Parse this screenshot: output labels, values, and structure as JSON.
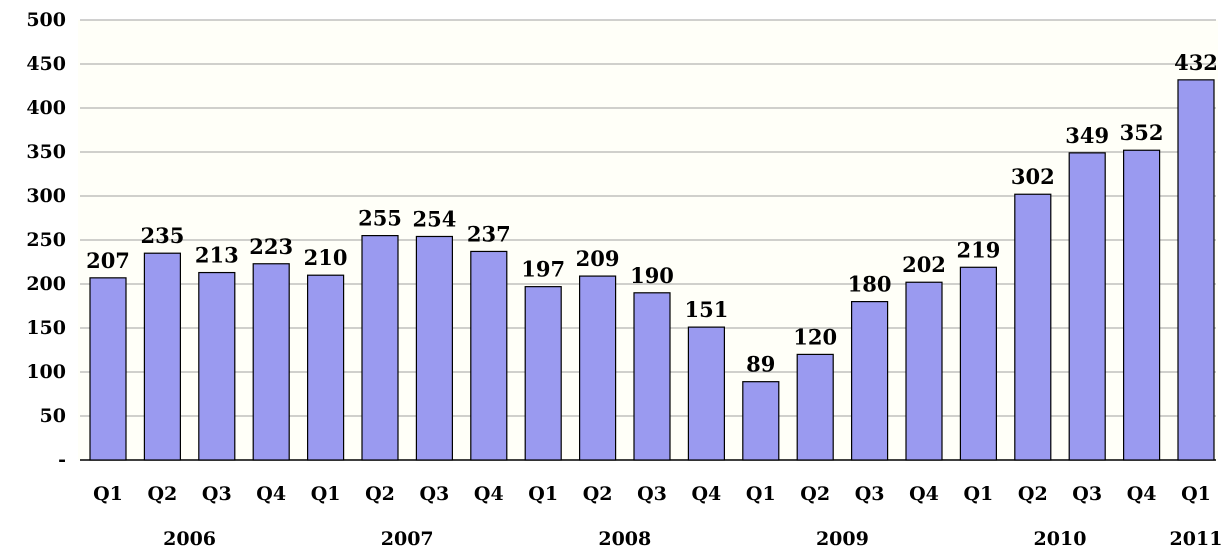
{
  "chart_data": {
    "type": "bar",
    "categories": [
      "Q1",
      "Q2",
      "Q3",
      "Q4",
      "Q1",
      "Q2",
      "Q3",
      "Q4",
      "Q1",
      "Q2",
      "Q3",
      "Q4",
      "Q1",
      "Q2",
      "Q3",
      "Q4",
      "Q1",
      "Q2",
      "Q3",
      "Q4",
      "Q1"
    ],
    "years": [
      {
        "label": "2006",
        "quarters": 4
      },
      {
        "label": "2007",
        "quarters": 4
      },
      {
        "label": "2008",
        "quarters": 4
      },
      {
        "label": "2009",
        "quarters": 4
      },
      {
        "label": "2010",
        "quarters": 4
      },
      {
        "label": "2011",
        "quarters": 1
      }
    ],
    "values": [
      207,
      235,
      213,
      223,
      210,
      255,
      254,
      237,
      197,
      209,
      190,
      151,
      89,
      120,
      180,
      202,
      219,
      302,
      349,
      352,
      432
    ],
    "y_ticks": [
      "-",
      "50",
      "100",
      "150",
      "200",
      "250",
      "300",
      "350",
      "400",
      "450",
      "500"
    ],
    "ylim": [
      0,
      500
    ],
    "grid": true,
    "colors": {
      "bar_fill": "#9a9af0",
      "bar_stroke": "#000000",
      "grid": "#a0a0a0",
      "plot_bg": "#fffff8"
    }
  }
}
